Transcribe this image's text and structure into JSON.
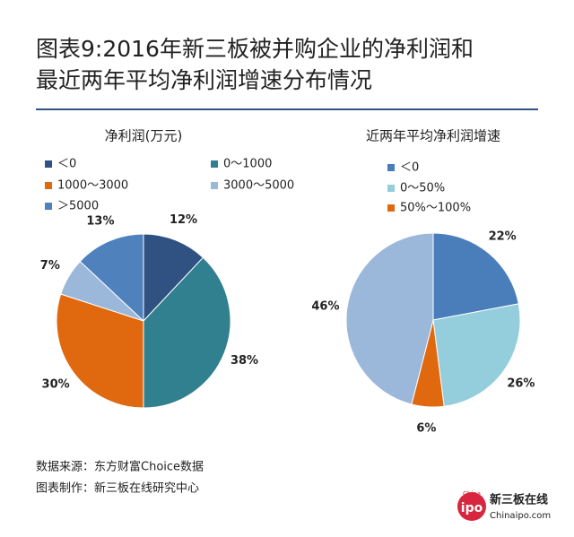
{
  "title_lines": [
    "图表9:2016年新三板被并购企业的净利润和",
    "最近两年平均净利润增速分布情况"
  ],
  "chart_data": [
    {
      "type": "pie",
      "title": "净利润(万元)",
      "categories": [
        "＜0",
        "0～1000",
        "1000～3000",
        "3000～5000",
        "＞5000"
      ],
      "values": [
        12,
        38,
        30,
        7,
        13
      ],
      "value_labels": [
        "12%",
        "38%",
        "30%",
        "7%",
        "13%"
      ],
      "colors": [
        "#2f5282",
        "#31808f",
        "#e0680f",
        "#9bb7da",
        "#4f81bd"
      ]
    },
    {
      "type": "pie",
      "title": "近两年平均净利润增速",
      "categories": [
        "＜0",
        "0～50%",
        "50%～100%",
        null
      ],
      "values": [
        22,
        26,
        6,
        46
      ],
      "value_labels": [
        "22%",
        "26%",
        "6%",
        "46%"
      ],
      "colors": [
        "#4a7ebb",
        "#94cddb",
        "#e0680f",
        "#9bb7da"
      ]
    }
  ],
  "footer": [
    "数据来源：东方财富Choice数据",
    "图表制作：新三板在线研究中心"
  ],
  "logo": {
    "mark": "ipo",
    "top": "China",
    "name": "新三板在线",
    "site": "Chinaipo.com"
  }
}
